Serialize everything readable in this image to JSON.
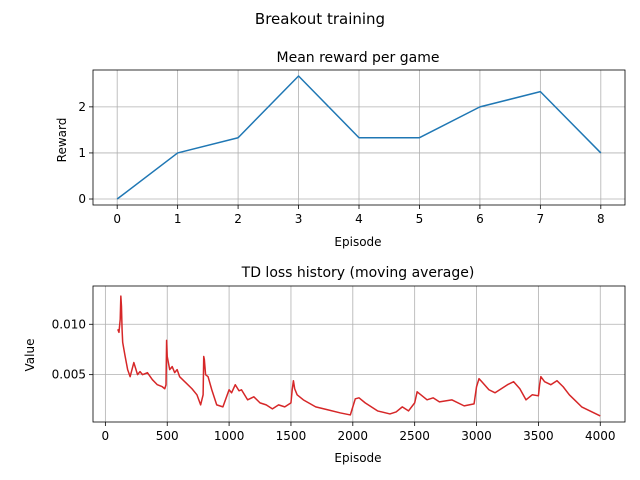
{
  "figure": {
    "suptitle": "Breakout training"
  },
  "chart_data": [
    {
      "type": "line",
      "title": "Mean reward per game",
      "xlabel": "Episode",
      "ylabel": "Reward",
      "xlim": [
        -0.4,
        8.4
      ],
      "ylim": [
        -0.13,
        2.8
      ],
      "xticks": [
        0,
        1,
        2,
        3,
        4,
        5,
        6,
        7,
        8
      ],
      "yticks": [
        0,
        1,
        2
      ],
      "grid": true,
      "color": "#1f77b4",
      "series": [
        {
          "x": [
            0,
            1,
            2,
            3,
            4,
            5,
            6,
            7,
            8
          ],
          "values": [
            0,
            1,
            1.33,
            2.67,
            1.33,
            1.33,
            2,
            2.33,
            1
          ]
        }
      ]
    },
    {
      "type": "line",
      "title": "TD loss history (moving average)",
      "xlabel": "Episode",
      "ylabel": "Value",
      "xlim": [
        -100,
        4200
      ],
      "ylim": [
        0.0003,
        0.0138
      ],
      "xticks": [
        0,
        500,
        1000,
        1500,
        2000,
        2500,
        3000,
        3500,
        4000
      ],
      "yticks": [
        0.005,
        0.01
      ],
      "ytick_labels": [
        "0.005",
        "0.010"
      ],
      "grid": true,
      "color": "#d62728",
      "series": [
        {
          "x": [
            100,
            110,
            120,
            125,
            130,
            135,
            140,
            150,
            160,
            180,
            200,
            230,
            260,
            280,
            300,
            340,
            380,
            420,
            460,
            480,
            490,
            495,
            500,
            520,
            540,
            560,
            580,
            600,
            650,
            700,
            740,
            770,
            780,
            790,
            795,
            800,
            810,
            830,
            860,
            900,
            950,
            1000,
            1020,
            1050,
            1080,
            1100,
            1150,
            1200,
            1250,
            1300,
            1350,
            1400,
            1450,
            1500,
            1510,
            1520,
            1530,
            1550,
            1600,
            1700,
            1800,
            1900,
            1980,
            2000,
            2020,
            2050,
            2100,
            2150,
            2200,
            2300,
            2350,
            2400,
            2450,
            2500,
            2520,
            2550,
            2600,
            2650,
            2700,
            2800,
            2900,
            2980,
            3000,
            3020,
            3050,
            3100,
            3150,
            3200,
            3250,
            3300,
            3350,
            3400,
            3450,
            3500,
            3510,
            3520,
            3550,
            3600,
            3650,
            3700,
            3750,
            3800,
            3850,
            3900,
            3950,
            4000
          ],
          "values": [
            0.0095,
            0.0092,
            0.0105,
            0.0128,
            0.0118,
            0.0095,
            0.0082,
            0.0075,
            0.0068,
            0.0055,
            0.0048,
            0.0062,
            0.005,
            0.0053,
            0.005,
            0.0052,
            0.0045,
            0.004,
            0.0038,
            0.0036,
            0.004,
            0.0084,
            0.0068,
            0.0055,
            0.0058,
            0.0052,
            0.0055,
            0.0048,
            0.0042,
            0.0036,
            0.003,
            0.002,
            0.0025,
            0.003,
            0.0068,
            0.0065,
            0.005,
            0.0048,
            0.0035,
            0.002,
            0.0018,
            0.0035,
            0.0032,
            0.004,
            0.0034,
            0.0035,
            0.0025,
            0.0028,
            0.0022,
            0.002,
            0.0016,
            0.002,
            0.0018,
            0.0022,
            0.0035,
            0.0044,
            0.0036,
            0.003,
            0.0025,
            0.0018,
            0.0015,
            0.0012,
            0.001,
            0.0018,
            0.0026,
            0.0027,
            0.0022,
            0.0018,
            0.0014,
            0.0011,
            0.0013,
            0.0018,
            0.0014,
            0.0022,
            0.0033,
            0.003,
            0.0025,
            0.0027,
            0.0023,
            0.0025,
            0.0019,
            0.0021,
            0.0038,
            0.0046,
            0.0042,
            0.0035,
            0.0032,
            0.0036,
            0.004,
            0.0043,
            0.0036,
            0.0025,
            0.003,
            0.0029,
            0.004,
            0.0048,
            0.0043,
            0.004,
            0.0044,
            0.0038,
            0.003,
            0.0024,
            0.0018,
            0.0015,
            0.0012,
            0.0009
          ]
        }
      ]
    }
  ]
}
